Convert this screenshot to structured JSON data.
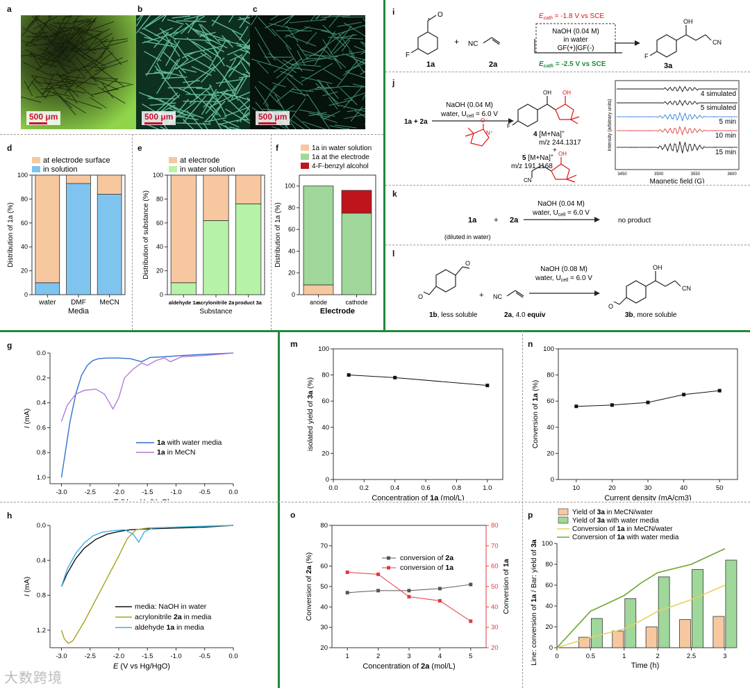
{
  "panel_labels": {
    "a": "a",
    "b": "b",
    "c": "c",
    "d": "d",
    "e": "e",
    "f": "f",
    "g": "g",
    "h": "h",
    "i": "i",
    "j": "j",
    "k": "k",
    "l": "l",
    "m": "m",
    "n": "n",
    "o": "o",
    "p": "p"
  },
  "photos": [
    {
      "id": "a",
      "scale": "500 μm",
      "color_main": "#6fbf3a",
      "color_dark": "#1c2a10"
    },
    {
      "id": "b",
      "scale": "500 μm",
      "color_main": "#0f3a24",
      "color_dark": "#6fe0b0"
    },
    {
      "id": "c",
      "scale": "500 μm",
      "color_main": "#0a1a12",
      "color_dark": "#5fc8a0"
    }
  ],
  "colors": {
    "orange": "#f7c8a0",
    "blue": "#7fc4ef",
    "lightgreen": "#b6f2a8",
    "green": "#9fd89a",
    "darkred": "#c0141c",
    "brand_green": "#1f8a3b",
    "red": "#e23b3b",
    "navy": "#2f6fd0",
    "purple": "#b27ad8"
  },
  "chart_data": [
    {
      "id": "d",
      "type": "bar",
      "stacked": true,
      "categories": [
        "water",
        "DMF",
        "MeCN"
      ],
      "series": [
        {
          "name": "in solution",
          "values": [
            10,
            93,
            84
          ]
        },
        {
          "name": "at electrode surface",
          "values": [
            90,
            7,
            16
          ]
        }
      ],
      "legend": [
        "at electrode surface",
        "in solution"
      ],
      "xlabel": "Media",
      "ylabel": "Distribution of 1a (%)",
      "ylim": [
        0,
        100
      ],
      "yticks": [
        "0",
        "20",
        "40",
        "60",
        "80",
        "100"
      ]
    },
    {
      "id": "e",
      "type": "bar",
      "stacked": true,
      "categories": [
        "aldehyde 1a",
        "acrylonitrile 2a",
        "product 3a"
      ],
      "series": [
        {
          "name": "in water solution",
          "values": [
            10,
            62,
            76
          ]
        },
        {
          "name": "at electrode",
          "values": [
            90,
            38,
            24
          ]
        }
      ],
      "legend": [
        "at electrode",
        "in water solution"
      ],
      "xlabel": "Substance",
      "ylabel": "Distribution of substance (%)",
      "ylim": [
        0,
        100
      ],
      "yticks": [
        "0",
        "20",
        "40",
        "60",
        "80",
        "100"
      ]
    },
    {
      "id": "f",
      "type": "bar",
      "stacked": true,
      "categories": [
        "anode",
        "cathode"
      ],
      "series": [
        {
          "name": "1a in water solution",
          "values": [
            9,
            0
          ]
        },
        {
          "name": "1a at the electrode",
          "values": [
            91,
            75
          ]
        },
        {
          "name": "4-F-benzyl alcohol",
          "values": [
            0,
            21
          ]
        }
      ],
      "legend": [
        "1a in water solution",
        "1a at the electrode",
        "4-F-benzyl alcohol"
      ],
      "xlabel": "Electrode",
      "ylabel": "Distribution of 1a (%)",
      "ylim": [
        0,
        110
      ],
      "yticks": [
        "0",
        "20",
        "40",
        "60",
        "80",
        "100"
      ]
    },
    {
      "id": "g",
      "type": "line",
      "xlabel": "E (V vs Hg/HgO)",
      "ylabel": "I (mA)",
      "xlim": [
        -3.2,
        0
      ],
      "ylim": [
        0,
        1.05
      ],
      "y_inverted": true,
      "xticks": [
        "-3.0",
        "-2.5",
        "-2.0",
        "-1.5",
        "-1.0",
        "-0.5",
        "0.0"
      ],
      "yticks": [
        "0.0",
        "0.2",
        "0.4",
        "0.6",
        "0.8",
        "1.0"
      ],
      "series": [
        {
          "name": "1a with water media",
          "x": [
            -3.0,
            -2.95,
            -2.85,
            -2.75,
            -2.65,
            -2.55,
            -2.45,
            -2.35,
            -2.2,
            -2.0,
            -1.8,
            -1.6,
            -1.45,
            -1.2,
            -0.9,
            -0.5,
            0.0
          ],
          "y": [
            1.0,
            0.85,
            0.55,
            0.33,
            0.18,
            0.1,
            0.06,
            0.045,
            0.04,
            0.04,
            0.045,
            0.07,
            0.035,
            0.03,
            0.02,
            0.01,
            0.0
          ]
        },
        {
          "name": "1a in MeCN",
          "x": [
            -3.0,
            -2.9,
            -2.75,
            -2.6,
            -2.4,
            -2.25,
            -2.1,
            -2.0,
            -1.9,
            -1.75,
            -1.6,
            -1.5,
            -1.35,
            -1.2,
            -1.1,
            -0.9,
            -0.5,
            0.0
          ],
          "y": [
            0.55,
            0.42,
            0.33,
            0.3,
            0.29,
            0.33,
            0.45,
            0.36,
            0.2,
            0.13,
            0.08,
            0.1,
            0.06,
            0.04,
            0.07,
            0.03,
            0.02,
            0.0
          ]
        }
      ]
    },
    {
      "id": "h",
      "type": "line",
      "xlabel": "E (V vs Hg/HgO)",
      "ylabel": "I (mA)",
      "xlim": [
        -3.2,
        0
      ],
      "ylim": [
        0,
        1.4
      ],
      "y_inverted": true,
      "xticks": [
        "-3.0",
        "-2.5",
        "-2.0",
        "-1.5",
        "-1.0",
        "-0.5",
        "0.0"
      ],
      "yticks": [
        "0.0",
        "0.4",
        "0.8",
        "1.2"
      ],
      "series": [
        {
          "name": "media: NaOH in water",
          "x": [
            -3.0,
            -2.9,
            -2.75,
            -2.6,
            -2.4,
            -2.2,
            -2.0,
            -1.8,
            -1.5,
            -1.0,
            -0.5,
            0.0
          ],
          "y": [
            0.7,
            0.55,
            0.38,
            0.26,
            0.16,
            0.1,
            0.07,
            0.05,
            0.04,
            0.03,
            0.02,
            0.0
          ]
        },
        {
          "name": "acrylonitrile 2a in media",
          "x": [
            -3.0,
            -2.95,
            -2.88,
            -2.8,
            -2.6,
            -2.4,
            -2.2,
            -2.0,
            -1.85,
            -1.7,
            -1.5,
            -1.0,
            -0.5,
            0.0
          ],
          "y": [
            1.2,
            1.3,
            1.35,
            1.32,
            1.1,
            0.85,
            0.6,
            0.35,
            0.15,
            0.05,
            0.03,
            0.02,
            0.01,
            0.0
          ]
        },
        {
          "name": "aldehyde 1a in media",
          "x": [
            -3.0,
            -2.9,
            -2.75,
            -2.6,
            -2.45,
            -2.3,
            -2.1,
            -1.9,
            -1.75,
            -1.65,
            -1.55,
            -1.4,
            -1.0,
            -0.5,
            0.0
          ],
          "y": [
            0.7,
            0.5,
            0.32,
            0.2,
            0.12,
            0.08,
            0.06,
            0.05,
            0.1,
            0.19,
            0.07,
            0.03,
            0.02,
            0.01,
            0.0
          ]
        }
      ]
    },
    {
      "id": "m",
      "type": "line",
      "xlabel": "Concentration of 1a (mol/L)",
      "ylabel": "isolated yield of 3a (%)",
      "xlim": [
        0,
        1.1
      ],
      "ylim": [
        0,
        100
      ],
      "xticks": [
        "0.0",
        "0.2",
        "0.4",
        "0.6",
        "0.8",
        "1.0"
      ],
      "yticks": [
        "0",
        "20",
        "40",
        "60",
        "80",
        "100"
      ],
      "series": [
        {
          "name": "",
          "x": [
            0.1,
            0.4,
            1.0
          ],
          "y": [
            80,
            78,
            72
          ]
        }
      ]
    },
    {
      "id": "n",
      "type": "line",
      "xlabel": "Current density (mA/cm3)",
      "ylabel": "Conversion of 1a (%)",
      "xlim": [
        5,
        55
      ],
      "ylim": [
        0,
        100
      ],
      "xticks": [
        "10",
        "20",
        "30",
        "40",
        "50"
      ],
      "yticks": [
        "0",
        "20",
        "40",
        "60",
        "80",
        "100"
      ],
      "series": [
        {
          "name": "",
          "x": [
            10,
            20,
            30,
            40,
            50
          ],
          "y": [
            56,
            57,
            59,
            65,
            68
          ]
        }
      ]
    },
    {
      "id": "o",
      "type": "line",
      "xlabel": "Concentration of 2a (mol/L)",
      "ylabel": "Conversion of 2a (%)",
      "ylabel_right": "Conversion of 1a",
      "xlim": [
        0.5,
        5.5
      ],
      "ylim": [
        20,
        80
      ],
      "ylim_right": [
        20,
        80
      ],
      "xticks": [
        "1",
        "2",
        "3",
        "4",
        "5"
      ],
      "yticks": [
        "20",
        "30",
        "40",
        "50",
        "60",
        "70",
        "80"
      ],
      "series": [
        {
          "name": "conversion of 2a",
          "x": [
            1,
            2,
            3,
            4,
            5
          ],
          "y": [
            47,
            48,
            48,
            49,
            51
          ]
        },
        {
          "name": "conversion of 1a",
          "x": [
            1,
            2,
            3,
            4,
            5
          ],
          "y": [
            57,
            56,
            45,
            43,
            33
          ]
        }
      ]
    },
    {
      "id": "p",
      "type": "bar",
      "xlabel": "Time (h)",
      "ylabel": "Line: conversion of 1a / Bar: yield of 3a",
      "xlim": [
        0,
        3.25
      ],
      "ylim": [
        0,
        100
      ],
      "xticks": [
        "0",
        "0.5",
        "1",
        "2",
        "2.5",
        "3"
      ],
      "yticks": [
        "0",
        "20",
        "40",
        "60",
        "80",
        "100"
      ],
      "categories": [
        "0.5",
        "1",
        "2",
        "2.5",
        "3"
      ],
      "series": [
        {
          "name": "Yield of 3a in MeCN/water",
          "x": [
            0.5,
            1,
            2,
            2.5,
            3
          ],
          "values": [
            10,
            16,
            20,
            27,
            30
          ]
        },
        {
          "name": "Yield of 3a with water media",
          "x": [
            0.5,
            1,
            2,
            2.5,
            3
          ],
          "values": [
            28,
            47,
            68,
            75,
            84
          ]
        },
        {
          "name": "Conversion of 1a in MeCN/water",
          "x": [
            0,
            0.5,
            1,
            1.5,
            2,
            2.5,
            3
          ],
          "y": [
            0,
            10,
            18,
            26,
            35,
            46,
            60
          ]
        },
        {
          "name": "Conversion of 1a with water media",
          "x": [
            0,
            0.5,
            1,
            1.5,
            2,
            2.5,
            3
          ],
          "y": [
            0,
            35,
            50,
            62,
            72,
            80,
            95
          ]
        }
      ]
    }
  ],
  "schemes": {
    "i": {
      "cond_top": "E",
      "cond_top_sub": "cath",
      "cond_top_val": " = -1.8 V vs SCE",
      "base": "NaOH (0.04 M)",
      "solvent": "in water",
      "cell": "GF(+)|GF(-)",
      "cond_bot": "E",
      "cond_bot_sub": "cath",
      "cond_bot_val": " = -2.5 V vs SCE",
      "r1": "1a",
      "r2": "2a",
      "prod": "3a",
      "plus": "+"
    },
    "j": {
      "reactants": "1a + 2a",
      "base": "NaOH (0.04 M)",
      "cond": "water, U",
      "cond_sub": "cell",
      "cond_val": " = 6.0 V",
      "p4": "4",
      "p4_ion": " [M+Na]",
      "p4_mz": "m/z 244.1317",
      "p5": "5",
      "p5_ion": " [M+Na]",
      "p5_mz": "m/z 191.1168",
      "plus": "+",
      "epr_labels": [
        "4 simulated",
        "5 simulated",
        "5 min",
        "10 min",
        "15 min"
      ],
      "epr_x": "Magnetic field  (G)",
      "epr_y": "Intensity (arbitrary units)",
      "epr_xticks": [
        "3450",
        "3500",
        "3550",
        "3600"
      ]
    },
    "k": {
      "r1": "1a",
      "plus": "+",
      "r2": "2a",
      "base": "NaOH (0.04 M)",
      "cond": "water, U",
      "cond_sub": "cell",
      "cond_val": " = 6.0 V",
      "result": "no product",
      "note": "(diluted in water)"
    },
    "l": {
      "base": "NaOH (0.08 M)",
      "cond": "water, U",
      "cond_sub": "cell",
      "cond_val": " = 6.0 V",
      "r1": "1b",
      "r1_note": ", less soluble",
      "r2": "2a",
      "r2_note": ", 4.0 ",
      "r2_equiv": "equiv",
      "prod": "3b",
      "prod_note": ", more soluble",
      "plus": "+"
    }
  },
  "watermark": "大数跨境"
}
